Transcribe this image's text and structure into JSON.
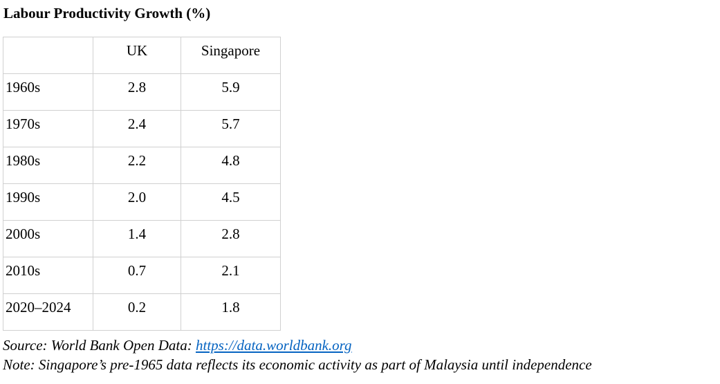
{
  "header": {
    "title": "Labour Productivity Growth (%)"
  },
  "table": {
    "columns": [
      "",
      "UK",
      "Singapore"
    ],
    "rows": [
      [
        "1960s",
        "2.8",
        "5.9"
      ],
      [
        "1970s",
        "2.4",
        "5.7"
      ],
      [
        "1980s",
        "2.2",
        "4.8"
      ],
      [
        "1990s",
        "2.0",
        "4.5"
      ],
      [
        "2000s",
        "1.4",
        "2.8"
      ],
      [
        "2010s",
        "0.7",
        "2.1"
      ],
      [
        "2020–2024",
        "0.2",
        "1.8"
      ]
    ]
  },
  "footer": {
    "source_label": "Source: World Bank Open Data:",
    "source_link": "https://data.worldbank.org",
    "note": "Note: Singapore’s pre-1965 data reflects its economic activity as part of Malaysia until independence"
  }
}
